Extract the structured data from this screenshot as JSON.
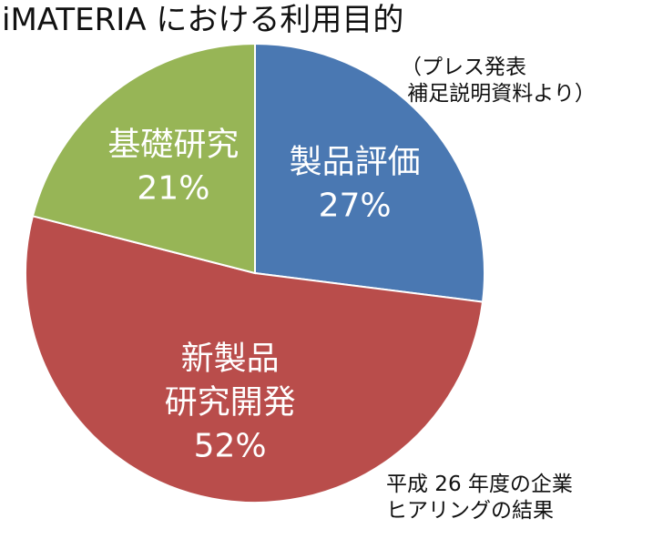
{
  "chart_data": {
    "type": "pie",
    "title": "iMATERIA における利用目的",
    "slices": [
      {
        "label": [
          "製品評価"
        ],
        "value": 27,
        "value_label": "27%",
        "color": "#4a78b2"
      },
      {
        "label": [
          "新製品",
          "研究開発"
        ],
        "value": 52,
        "value_label": "52%",
        "color": "#b94d4b"
      },
      {
        "label": [
          "基礎研究"
        ],
        "value": 21,
        "value_label": "21%",
        "color": "#97b556"
      }
    ],
    "start_angle_deg": 0,
    "direction": "clockwise",
    "edge_color": "#ffffff",
    "legend": "none",
    "annotations": [
      "（プレス発表\n 補足説明資料より）",
      "平成 26 年度の企業\nヒアリングの結果"
    ]
  }
}
